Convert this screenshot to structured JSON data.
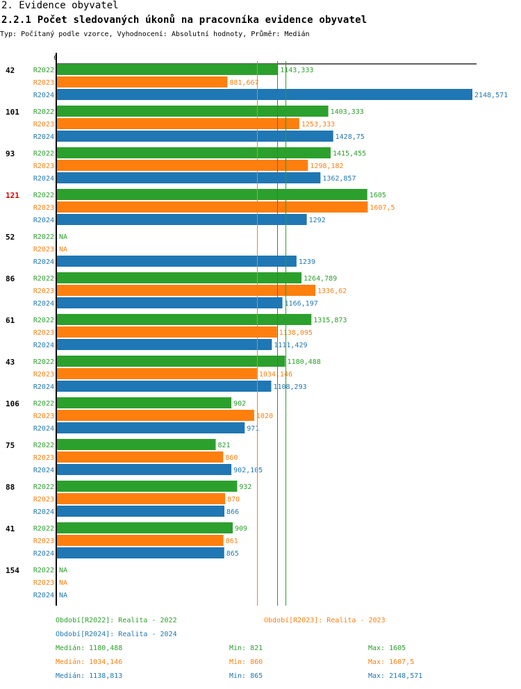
{
  "header": {
    "section_title": "2. Evidence obyvatel",
    "chart_title": "2.2.1 Počet sledovaných úkonů na pracovníka evidence obyvatel",
    "subtitle": "Typ: Počítaný podle vzorce, Vyhodnocení: Absolutní hodnoty, Průměr: Medián"
  },
  "colors": {
    "R2022": "#2ca02c",
    "R2023": "#ff7f0e",
    "R2024": "#1f77b4",
    "highlight_group": "#dd0000",
    "axis": "#000000"
  },
  "chart_data": {
    "type": "bar",
    "orientation": "horizontal",
    "title": "2.2.1 Počet sledovaných úkonů na pracovníka evidence obyvatel",
    "axis_zero_label": "0",
    "xlim": [
      0,
      2148.571
    ],
    "series_names": [
      "R2022",
      "R2023",
      "R2024"
    ],
    "categories": [
      {
        "label": "42",
        "highlight": false,
        "values": [
          1143.333,
          881.667,
          2148.571
        ],
        "labels": [
          "1143,333",
          "881,667",
          "2148,571"
        ]
      },
      {
        "label": "101",
        "highlight": false,
        "values": [
          1403.333,
          1253.333,
          1428.75
        ],
        "labels": [
          "1403,333",
          "1253,333",
          "1428,75"
        ]
      },
      {
        "label": "93",
        "highlight": false,
        "values": [
          1415.455,
          1298.182,
          1362.857
        ],
        "labels": [
          "1415,455",
          "1298,182",
          "1362,857"
        ]
      },
      {
        "label": "121",
        "highlight": true,
        "values": [
          1605,
          1607.5,
          1292
        ],
        "labels": [
          "1605",
          "1607,5",
          "1292"
        ]
      },
      {
        "label": "52",
        "highlight": false,
        "values": [
          null,
          null,
          1239
        ],
        "labels": [
          "NA",
          "NA",
          "1239"
        ]
      },
      {
        "label": "86",
        "highlight": false,
        "values": [
          1264.789,
          1336.62,
          1166.197
        ],
        "labels": [
          "1264,789",
          "1336,62",
          "1166,197"
        ]
      },
      {
        "label": "61",
        "highlight": false,
        "values": [
          1315.873,
          1138.095,
          1111.429
        ],
        "labels": [
          "1315,873",
          "1138,095",
          "1111,429"
        ]
      },
      {
        "label": "43",
        "highlight": false,
        "values": [
          1180.488,
          1034.146,
          1108.293
        ],
        "labels": [
          "1180,488",
          "1034,146",
          "1108,293"
        ]
      },
      {
        "label": "106",
        "highlight": false,
        "values": [
          902,
          1020,
          971
        ],
        "labels": [
          "902",
          "1020",
          "971"
        ]
      },
      {
        "label": "75",
        "highlight": false,
        "values": [
          821,
          860,
          902.105
        ],
        "labels": [
          "821",
          "860",
          "902,105"
        ]
      },
      {
        "label": "88",
        "highlight": false,
        "values": [
          932,
          870,
          866
        ],
        "labels": [
          "932",
          "870",
          "866"
        ]
      },
      {
        "label": "41",
        "highlight": false,
        "values": [
          909,
          861,
          865
        ],
        "labels": [
          "909",
          "861",
          "865"
        ]
      },
      {
        "label": "154",
        "highlight": false,
        "values": [
          null,
          null,
          null
        ],
        "labels": [
          "NA",
          "NA",
          "NA"
        ]
      }
    ],
    "median_lines": [
      {
        "series": "R2022",
        "value": 1180.488
      },
      {
        "series": "R2023",
        "value": 1034.146
      },
      {
        "series": "R2024",
        "value": 1138.813
      }
    ]
  },
  "legend": {
    "periods": [
      {
        "series": "R2022",
        "text": "Období[R2022]: Realita - 2022"
      },
      {
        "series": "R2023",
        "text": "Období[R2023]: Realita - 2023"
      },
      {
        "series": "R2024",
        "text": "Období[R2024]: Realita - 2024"
      }
    ],
    "stats": [
      {
        "series": "R2022",
        "median": "Medián: 1180,488",
        "min": "Min: 821",
        "max": "Max: 1605"
      },
      {
        "series": "R2023",
        "median": "Medián: 1034,146",
        "min": "Min: 860",
        "max": "Max: 1607,5"
      },
      {
        "series": "R2024",
        "median": "Medián: 1138,813",
        "min": "Min: 865",
        "max": "Max: 2148,571"
      }
    ]
  }
}
